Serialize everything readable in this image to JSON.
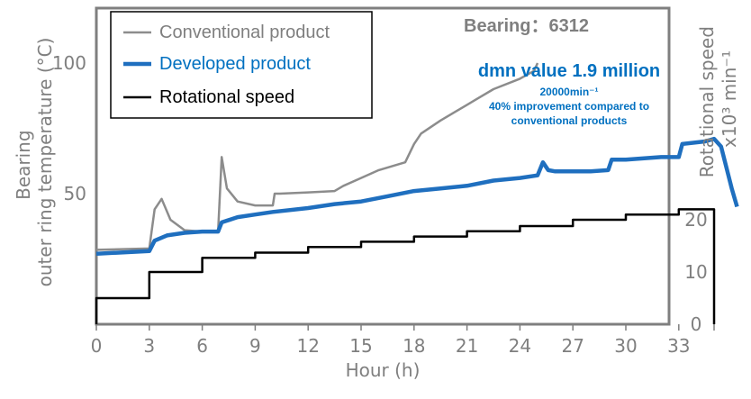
{
  "chart_data": {
    "type": "line",
    "xlabel": "Hour (h)",
    "ylabel_left": "Bearing outer ring temperature (°C)",
    "ylabel_right": "Rotational speed x10³ min⁻¹",
    "xlim": [
      0,
      35
    ],
    "ylim_left": [
      0,
      130
    ],
    "ylim_right": [
      0,
      50
    ],
    "x_ticks": [
      0,
      3,
      6,
      9,
      12,
      15,
      18,
      21,
      24,
      27,
      30,
      33
    ],
    "y_ticks_left": [
      50,
      100
    ],
    "y_ticks_right": [
      0,
      10,
      20
    ],
    "bearing_label": "Bearing：6312",
    "annotation": {
      "title": "dmn value 1.9 million",
      "sub1": "20000min⁻¹",
      "sub2": "40% improvement compared to",
      "sub3": "conventional products"
    },
    "legend_placement": "top-left",
    "colors": {
      "conventional": "#8c8c8c",
      "developed": "#1f6fbf",
      "speed": "#000000",
      "annotation": "#0070c0"
    },
    "series": [
      {
        "name": "Conventional product",
        "axis": "left",
        "x": [
          0,
          3.0,
          3.3,
          3.7,
          4.2,
          5.0,
          6.0,
          6.9,
          7.1,
          7.4,
          8.0,
          9.0,
          10.0,
          10.1,
          10.4,
          12.0,
          13.5,
          14.0,
          15.0,
          16.0,
          17.5,
          18.0,
          18.4,
          19.5,
          21.0,
          21.5,
          22.5,
          24.0,
          24.8,
          25.0
        ],
        "y": [
          28.5,
          29,
          44,
          48,
          40,
          36,
          35.5,
          35.5,
          64,
          52,
          47,
          45.5,
          45.5,
          50,
          50,
          50.5,
          51,
          53,
          56,
          59,
          62,
          69,
          73,
          78,
          84,
          86,
          90,
          94,
          97,
          100
        ]
      },
      {
        "name": "Developed product",
        "axis": "left",
        "x": [
          0,
          3.0,
          3.3,
          4.0,
          5.0,
          6.0,
          6.9,
          7.1,
          8.0,
          9.0,
          10.0,
          12.0,
          13.5,
          15.0,
          16.5,
          18.0,
          19.5,
          21.0,
          22.5,
          24.0,
          25.0,
          25.3,
          25.6,
          26.0,
          27.0,
          28.0,
          29.0,
          29.2,
          30.0,
          32.0,
          33.0,
          33.2,
          34.5,
          35.0,
          35.4,
          36.0,
          36.3
        ],
        "y": [
          27,
          28,
          32,
          34,
          35,
          35.5,
          35.5,
          39,
          41,
          42,
          43,
          44.5,
          46,
          47,
          49,
          51,
          52,
          53,
          55,
          56,
          57,
          62,
          59,
          58.5,
          58.5,
          58.5,
          59,
          63,
          63,
          64,
          64,
          69,
          70,
          71,
          68,
          52,
          45
        ]
      },
      {
        "name": "Rotational speed",
        "axis": "right",
        "x": [
          0,
          0,
          3,
          3,
          6,
          6,
          9,
          9,
          12,
          12,
          15,
          15,
          18,
          18,
          21,
          21,
          24,
          24,
          27,
          27,
          30,
          30,
          33,
          33,
          35,
          35
        ],
        "y": [
          0,
          5,
          5,
          10,
          10,
          12.7,
          12.7,
          13.7,
          13.7,
          14.8,
          14.8,
          15.8,
          15.8,
          16.8,
          16.8,
          17.8,
          17.8,
          18.8,
          18.8,
          20,
          20,
          21,
          21,
          22,
          22,
          0
        ]
      }
    ]
  }
}
